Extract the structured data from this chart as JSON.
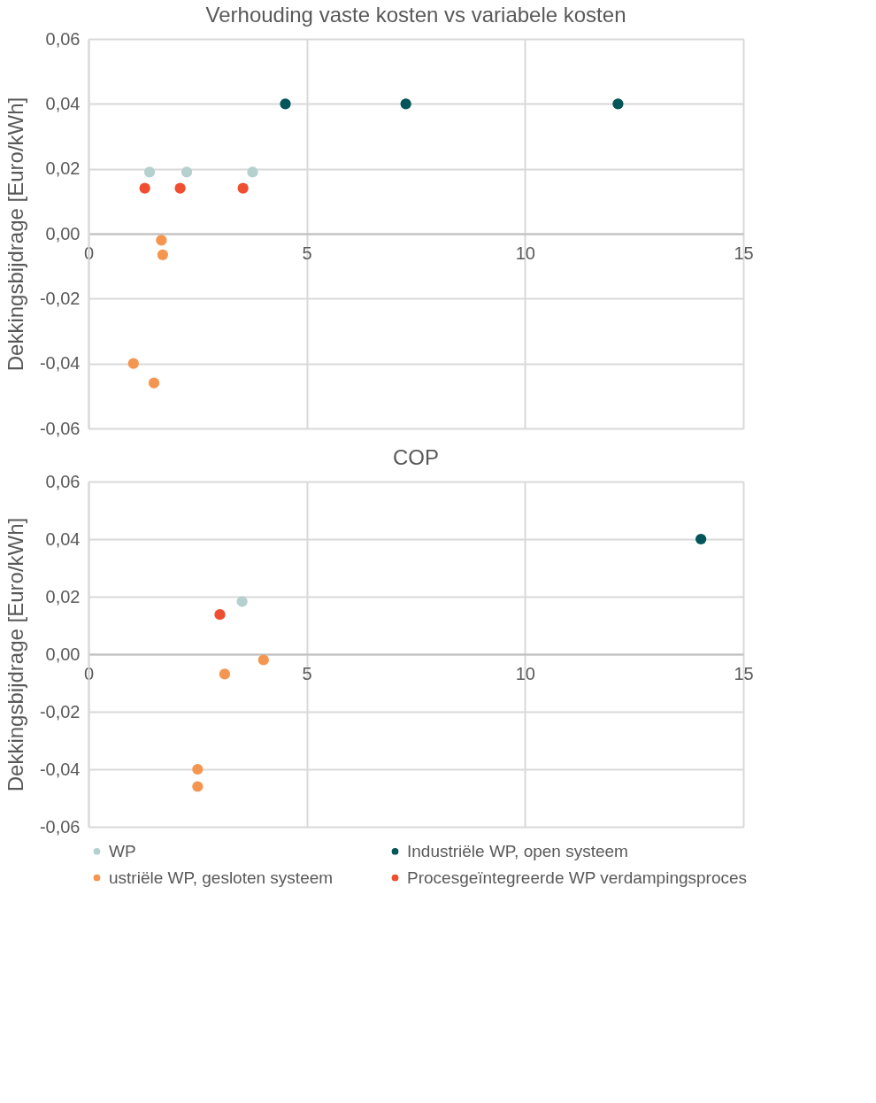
{
  "chart_data": [
    {
      "type": "scatter",
      "title": "Verhouding vaste kosten vs variabele kosten",
      "ylabel": "Dekkingsbijdrage [Euro/kWh]",
      "series": [
        {
          "color": "#b4d0cf",
          "x": [
            1.4,
            2.25,
            3.76
          ],
          "values": [
            0.019,
            0.019,
            0.019
          ]
        },
        {
          "color": "#02565a",
          "x": [
            4.51,
            7.27,
            12.13
          ],
          "values": [
            0.04,
            0.04,
            0.04
          ]
        },
        {
          "color": "#f4964f",
          "x": [
            1.67,
            1.7,
            1.03,
            1.5
          ],
          "values": [
            -0.002,
            -0.0065,
            -0.04,
            -0.046
          ]
        },
        {
          "color": "#f04e30",
          "x": [
            1.29,
            2.1,
            3.54
          ],
          "values": [
            0.014,
            0.014,
            0.014
          ]
        }
      ],
      "xlim": [
        0,
        15
      ],
      "xticks": [
        0,
        5,
        10,
        15
      ],
      "ylim": [
        -0.06,
        0.06
      ],
      "yticks": [
        {
          "value": -0.06,
          "label": "-0,06"
        },
        {
          "value": -0.04,
          "label": "-0,04"
        },
        {
          "value": -0.02,
          "label": "-0,02"
        },
        {
          "value": 0,
          "label": "0,00"
        },
        {
          "value": 0.02,
          "label": "0,02"
        },
        {
          "value": 0.04,
          "label": "0,04"
        },
        {
          "value": 0.06,
          "label": "0,06"
        }
      ],
      "grid": true,
      "marker": "circle"
    },
    {
      "type": "scatter",
      "title": "COP",
      "ylabel": "Dekkingsbijdrage [Euro/kWh]",
      "series": [
        {
          "name": "WP",
          "color": "#b4d0cf",
          "x": [
            3.52
          ],
          "values": [
            0.0183
          ]
        },
        {
          "name": "Industriële WP, open systeem",
          "color": "#02565a",
          "x": [
            14.03
          ],
          "values": [
            0.04
          ]
        },
        {
          "name": "ustriële WP, gesloten systeem",
          "color": "#f4964f",
          "x": [
            4.01,
            3.12,
            2.5,
            2.5
          ],
          "values": [
            -0.002,
            -0.0069,
            -0.04,
            -0.046
          ]
        },
        {
          "name": "Procesgeïntegreerde WP verdampingsproces",
          "color": "#f04e30",
          "x": [
            3.01
          ],
          "values": [
            0.0138
          ]
        }
      ],
      "xlim": [
        0,
        15
      ],
      "xticks": [
        0,
        5,
        10,
        15
      ],
      "ylim": [
        -0.06,
        0.06
      ],
      "yticks": [
        {
          "value": -0.06,
          "label": "-0,06"
        },
        {
          "value": -0.04,
          "label": "-0,04"
        },
        {
          "value": -0.02,
          "label": "-0,02"
        },
        {
          "value": 0,
          "label": "0,00"
        },
        {
          "value": 0.02,
          "label": "0,02"
        },
        {
          "value": 0.04,
          "label": "0,04"
        },
        {
          "value": 0.06,
          "label": "0,06"
        }
      ],
      "grid": true,
      "marker": "circle",
      "legend": "bottom"
    }
  ]
}
